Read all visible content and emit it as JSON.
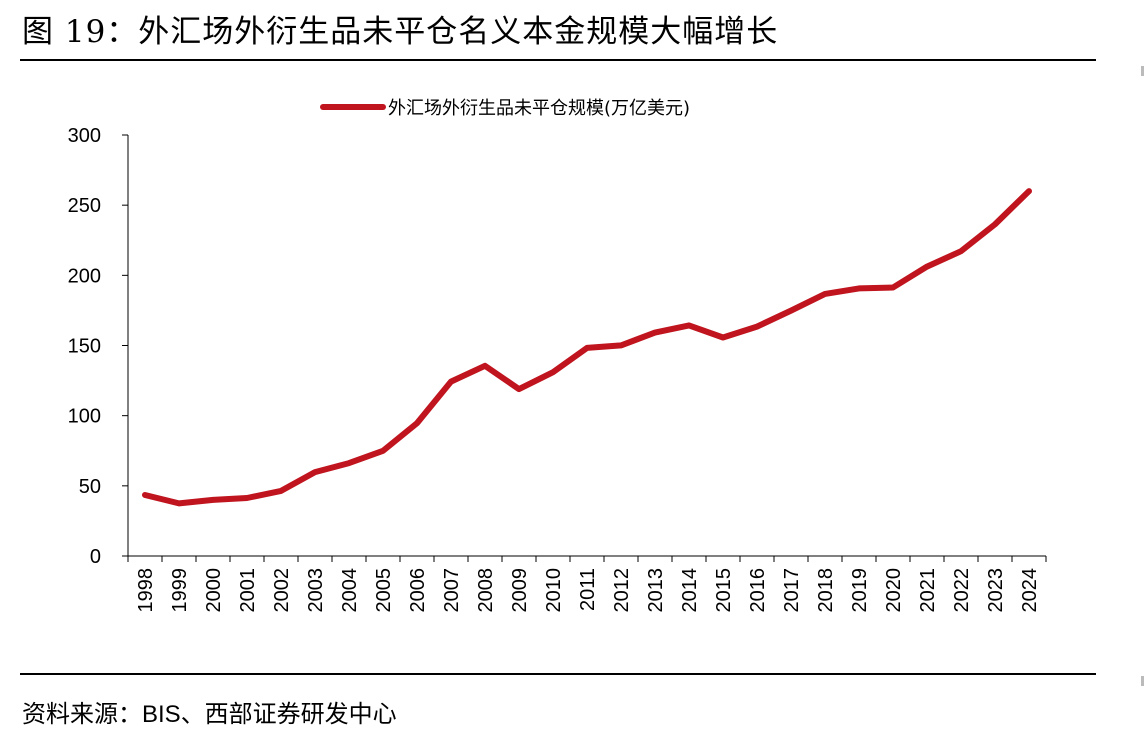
{
  "figure": {
    "title": "图 19：外汇场外衍生品未平仓名义本金规模大幅增长",
    "source_prefix": "资料来源：",
    "source_en": "BIS",
    "source_suffix": "、西部证券研发中心"
  },
  "chart_data": {
    "type": "line",
    "title": "",
    "xlabel": "",
    "ylabel": "",
    "x": [
      "1998",
      "1999",
      "2000",
      "2001",
      "2002",
      "2003",
      "2004",
      "2005",
      "2006",
      "2007",
      "2008",
      "2009",
      "2010",
      "2011",
      "2012",
      "2013",
      "2014",
      "2015",
      "2016",
      "2017",
      "2018",
      "2019",
      "2020",
      "2021",
      "2022",
      "2023",
      "2024"
    ],
    "series": [
      {
        "name": "外汇场外衍生品未平仓规模(万亿美元)",
        "color": "#c0141e",
        "values": [
          43.5,
          37.5,
          40,
          41.3,
          46.4,
          59.8,
          66.2,
          75,
          94.6,
          124.3,
          135.5,
          118.9,
          131,
          148.3,
          150.1,
          159.2,
          164.3,
          155.7,
          163.5,
          174.9,
          186.8,
          190.7,
          191.3,
          206.2,
          217.2,
          236.4,
          260
        ]
      }
    ],
    "ylim": [
      0,
      300
    ],
    "yticks": [
      0,
      50,
      100,
      150,
      200,
      250,
      300
    ],
    "grid": false,
    "legend_position": "top-center"
  }
}
